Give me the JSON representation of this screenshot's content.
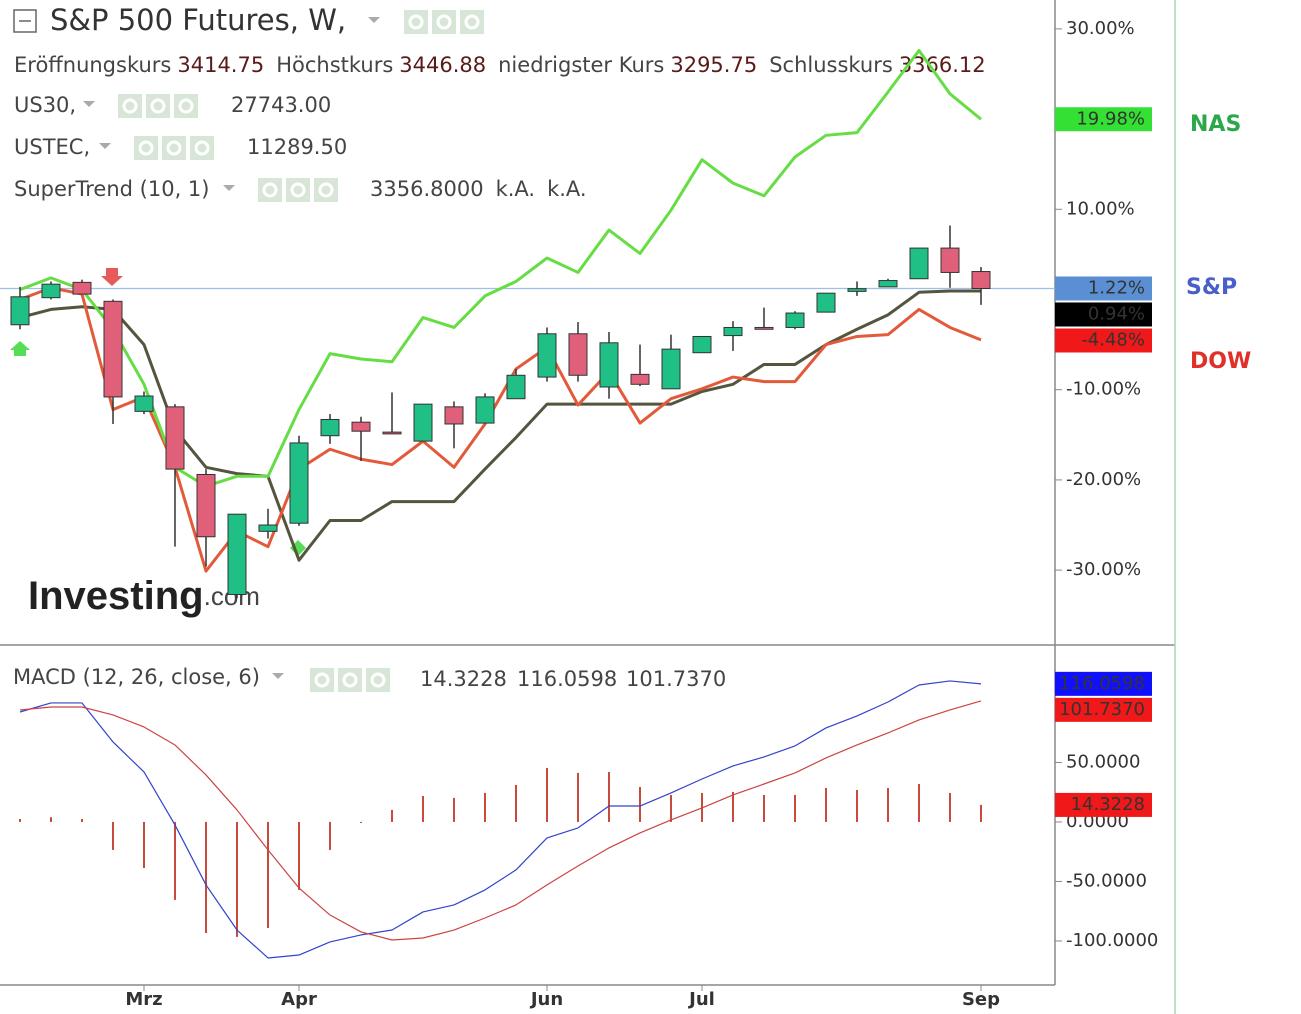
{
  "chart_data": [
    {
      "type": "candlestick",
      "title": "S&P 500 Futures, W,",
      "ohlc": [
        {
          "label": "Eröffnungskurs",
          "value": "3414.75"
        },
        {
          "label": "Höchstkurs",
          "value": "3446.88"
        },
        {
          "label": "niedrigster Kurs",
          "value": "3295.75"
        },
        {
          "label": "Schlusskurs",
          "value": "3366.12"
        }
      ],
      "indicators": [
        {
          "name": "US30,",
          "values": [
            "27743.00"
          ],
          "color": "#e01010"
        },
        {
          "name": "USTEC,",
          "values": [
            "11289.50"
          ],
          "color": "#22c822"
        },
        {
          "name": "SuperTrend (10, 1)",
          "values": [
            "3356.8000",
            "k.A.",
            "k.A."
          ],
          "color": "#111111"
        }
      ],
      "watermark": "Investing",
      "watermark_suffix": ".com",
      "candles": {
        "name": "S&P",
        "label_color": "#4a5fc7",
        "color_up": "#1fbf85",
        "color_down": "#e0607a",
        "open": [
          -2.8,
          0.2,
          1.9,
          -0.2,
          -12.4,
          -11.9,
          -19.4,
          -32.7,
          -25.7,
          -24.8,
          -15.1,
          -13.6,
          -14.7,
          -15.7,
          -11.9,
          -13.7,
          -11.0,
          -8.6,
          -3.8,
          -9.7,
          -8.3,
          -9.9,
          -5.9,
          -4.0,
          -3.1,
          -3.1,
          -1.4,
          0.9,
          1.4,
          2.3,
          5.7,
          3.1
        ],
        "high": [
          1.4,
          2.0,
          2.2,
          0,
          -10.2,
          -11.6,
          -18.8,
          -23.8,
          -23.2,
          -15.1,
          -12.7,
          -13.0,
          -10.3,
          -11.6,
          -11.3,
          -10.4,
          -7.7,
          -3.1,
          -2.5,
          -3.6,
          -5.0,
          -3.9,
          -4.1,
          -2.4,
          -0.9,
          -1.3,
          0.7,
          2.0,
          2.3,
          5.7,
          8.2,
          3.6
        ],
        "low": [
          -3.3,
          0,
          0.6,
          -13.8,
          -12.7,
          -27.4,
          -29.6,
          -33.1,
          -26.5,
          -25.1,
          -16.0,
          -17.9,
          -14.9,
          -15.7,
          -16.5,
          -13.7,
          -11.0,
          -9.1,
          -9.1,
          -11.0,
          -9.6,
          -9.9,
          -5.9,
          -5.7,
          -3.3,
          -3.3,
          -1.4,
          0.4,
          1.4,
          2.3,
          1.3,
          -0.6
        ],
        "close": [
          0.3,
          1.7,
          0.6,
          -10.8,
          -10.7,
          -18.8,
          -26.3,
          -23.8,
          -25.0,
          -15.9,
          -13.3,
          -14.6,
          -14.9,
          -11.6,
          -13.8,
          -10.8,
          -8.4,
          -3.8,
          -8.4,
          -4.8,
          -9.4,
          -5.5,
          -4.1,
          -3.1,
          -3.3,
          -1.5,
          0.7,
          1.2,
          2.1,
          5.7,
          3.0,
          1.22
        ],
        "tag": {
          "value": 1.22,
          "label": "1.22%"
        },
        "tag_color": "#5b8fd4"
      },
      "series": [
        {
          "name": "NAS",
          "label_color": "#2aa84a",
          "color": "#66dd44",
          "tag_color": "#33e033",
          "values": [
            1.1,
            2.4,
            1.1,
            -3.3,
            -9.4,
            -18.6,
            -20.7,
            -19.6,
            -19.6,
            -12.2,
            -6.0,
            -6.6,
            -6.9,
            -2.0,
            -3.1,
            0.4,
            2.0,
            4.6,
            3.0,
            7.7,
            5.1,
            9.9,
            15.5,
            12.9,
            11.5,
            15.8,
            18.2,
            18.5,
            23.0,
            27.6,
            22.8,
            19.98
          ],
          "tag": {
            "value": 19.98,
            "label": "19.98%"
          }
        },
        {
          "name": "DOW",
          "label_color": "#e0302a",
          "color": "#e35a3a",
          "tag_color": "#f01818",
          "values": [
            0.0,
            1.3,
            0.6,
            -12.2,
            -10.8,
            -18.6,
            -30.1,
            -25.7,
            -27.4,
            -18.8,
            -16.6,
            -17.7,
            -18.3,
            -15.7,
            -18.6,
            -13.8,
            -7.7,
            -5.3,
            -11.7,
            -8.0,
            -13.7,
            -11.0,
            -9.9,
            -8.6,
            -9.1,
            -9.1,
            -5.0,
            -4.1,
            -3.9,
            -1.1,
            -3.1,
            -4.48
          ],
          "tag": {
            "value": -4.48,
            "label": "-4.48%"
          }
        },
        {
          "color": "#55553f",
          "tag_color": "#000000",
          "values": [
            -2.0,
            -1.1,
            -0.8,
            -1.1,
            -5.0,
            -14.4,
            -18.6,
            -19.3,
            -19.6,
            -28.9,
            -24.5,
            -24.5,
            -22.4,
            -22.4,
            -22.4,
            -18.8,
            -15.3,
            -11.6,
            -11.6,
            -11.6,
            -11.6,
            -11.6,
            -10.2,
            -9.4,
            -7.2,
            -7.2,
            -5.0,
            -3.3,
            -1.7,
            0.8,
            0.94,
            0.94
          ],
          "tag": {
            "value": 0.94,
            "label": "0.94%"
          }
        }
      ],
      "ylim": [
        -38.3,
        33.2
      ],
      "yticks": [
        {
          "value": 30,
          "label": "30.00%"
        },
        {
          "value": 10,
          "label": "10.00%"
        },
        {
          "value": -10,
          "label": "-10.00%"
        },
        {
          "value": -20,
          "label": "-20.00%"
        },
        {
          "value": -30,
          "label": "-30.00%"
        }
      ]
    },
    {
      "type": "macd",
      "title": "MACD (12, 26, close, 6)",
      "categories": [
        null,
        null,
        null,
        null,
        "Mrz",
        null,
        null,
        null,
        null,
        "Apr",
        null,
        null,
        null,
        null,
        null,
        null,
        null,
        "Jun",
        null,
        null,
        null,
        null,
        "Jul",
        null,
        null,
        null,
        null,
        null,
        null,
        null,
        null,
        "Sep"
      ],
      "histogram": {
        "color": "#c84a3a",
        "header": "14.3228",
        "tag": {
          "value": 14.3228,
          "label": "14.3228"
        },
        "tag_color": "#f01818",
        "values": [
          2.5,
          4,
          2.5,
          -23.5,
          -38.7,
          -65.5,
          -93.3,
          -96.6,
          -89.1,
          -57.1,
          -23.5,
          -0.8,
          10.1,
          21.8,
          20.2,
          24.4,
          31.1,
          45.4,
          41.2,
          42.0,
          29.4,
          22.7,
          24.4,
          25.2,
          22.7,
          22.7,
          28.6,
          26.9,
          28.6,
          31.9,
          24.4,
          14.3228
        ]
      },
      "series": [
        {
          "color": "#3344cc",
          "header": "116.0598",
          "tag": {
            "value": 116.0598,
            "label": "116.0598"
          },
          "tag_color": "#1010ff",
          "values": [
            92.4,
            100.0,
            100.0,
            67.2,
            42.0,
            -2.5,
            -52.9,
            -90.8,
            -114.3,
            -111.8,
            -100.8,
            -94.9,
            -90.8,
            -75.6,
            -69.7,
            -57.1,
            -40.3,
            -13.4,
            -5.0,
            13.4,
            13.4,
            24.4,
            36.1,
            47.1,
            54.6,
            63.9,
            79.0,
            89.1,
            100.8,
            115.1,
            118.5,
            116.0598
          ]
        },
        {
          "color": "#cc4444",
          "header": "101.7370",
          "tag": {
            "value": 101.737,
            "label": "101.7370"
          },
          "tag_color": "#f01818",
          "values": [
            94.1,
            96.6,
            96.6,
            89.9,
            79.8,
            64.7,
            39.5,
            10.1,
            -23.5,
            -55.5,
            -78.2,
            -92.4,
            -99.2,
            -97.5,
            -90.8,
            -80.7,
            -69.7,
            -52.9,
            -37.0,
            -21.8,
            -9.2,
            1.7,
            11.8,
            22.7,
            31.9,
            41.2,
            53.8,
            64.7,
            74.8,
            85.7,
            94.1,
            101.737
          ]
        }
      ],
      "ylim": [
        -137,
        148.7
      ],
      "yticks": [
        {
          "value": 50,
          "label": "50.0000"
        },
        {
          "value": 0,
          "label": "0.0000"
        },
        {
          "value": -50,
          "label": "-50.0000"
        },
        {
          "value": -100,
          "label": "-100.0000"
        }
      ]
    }
  ]
}
